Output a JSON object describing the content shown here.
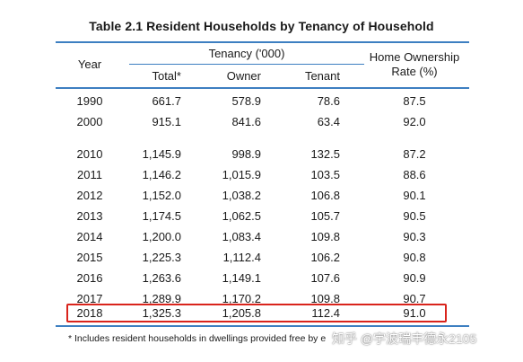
{
  "title": "Table 2.1  Resident Households by Tenancy of Household",
  "headers": {
    "year": "Year",
    "tenancy_group": "Tenancy ('000)",
    "total": "Total*",
    "owner": "Owner",
    "tenant": "Tenant",
    "rate_line1": "Home Ownership",
    "rate_line2": "Rate (%)"
  },
  "rows": [
    {
      "year": "1990",
      "total": "661.7",
      "owner": "578.9",
      "tenant": "78.6",
      "rate": "87.5"
    },
    {
      "year": "2000",
      "total": "915.1",
      "owner": "841.6",
      "tenant": "63.4",
      "rate": "92.0"
    },
    {
      "year": "2010",
      "total": "1,145.9",
      "owner": "998.9",
      "tenant": "132.5",
      "rate": "87.2"
    },
    {
      "year": "2011",
      "total": "1,146.2",
      "owner": "1,015.9",
      "tenant": "103.5",
      "rate": "88.6"
    },
    {
      "year": "2012",
      "total": "1,152.0",
      "owner": "1,038.2",
      "tenant": "106.8",
      "rate": "90.1"
    },
    {
      "year": "2013",
      "total": "1,174.5",
      "owner": "1,062.5",
      "tenant": "105.7",
      "rate": "90.5"
    },
    {
      "year": "2014",
      "total": "1,200.0",
      "owner": "1,083.4",
      "tenant": "109.8",
      "rate": "90.3"
    },
    {
      "year": "2015",
      "total": "1,225.3",
      "owner": "1,112.4",
      "tenant": "106.2",
      "rate": "90.8"
    },
    {
      "year": "2016",
      "total": "1,263.6",
      "owner": "1,149.1",
      "tenant": "107.6",
      "rate": "90.9"
    },
    {
      "year": "2017",
      "total": "1,289.9",
      "owner": "1,170.2",
      "tenant": "109.8",
      "rate": "90.7"
    },
    {
      "year": "2018",
      "total": "1,325.3",
      "owner": "1,205.8",
      "tenant": "112.4",
      "rate": "91.0"
    }
  ],
  "footnote": "* Includes resident households in dwellings provided free by e",
  "watermark": "知乎 @宇波瑞丰德永2105",
  "colors": {
    "rule": "#3d7fc1",
    "highlight": "#d9241c"
  }
}
